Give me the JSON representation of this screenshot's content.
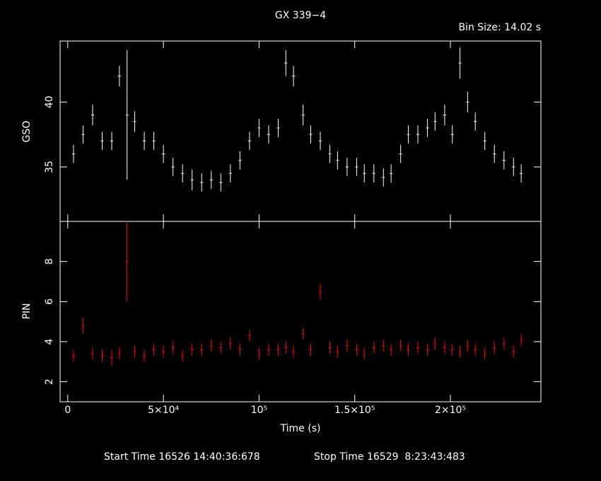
{
  "chart_data": [
    {
      "type": "errorbar",
      "title": "GX 339−4",
      "subtitle": "Bin Size: 14.02 s",
      "y_label": "GSO",
      "xlim": [
        -4000,
        247300
      ],
      "xticks": [
        0,
        50000,
        100000,
        150000,
        200000
      ],
      "ylim": [
        30.8,
        44.7
      ],
      "yticks": [
        35,
        40
      ],
      "series": [
        {
          "name": "GSO",
          "color": "#ffffff",
          "x": [
            3000,
            8000,
            13000,
            18000,
            23000,
            27000,
            31000,
            35000,
            40000,
            45000,
            50000,
            55000,
            60000,
            65000,
            70000,
            75000,
            80000,
            85000,
            90000,
            95000,
            100000,
            105000,
            110000,
            114000,
            118000,
            123000,
            127000,
            132000,
            137000,
            141000,
            146000,
            151000,
            155000,
            160000,
            165000,
            169000,
            174000,
            178000,
            183000,
            188000,
            192000,
            197000,
            201000,
            205000,
            209000,
            213000,
            218000,
            223000,
            228000,
            233000,
            237000
          ],
          "values": [
            36,
            37.5,
            39,
            37,
            37,
            42,
            39,
            38.5,
            37,
            37,
            36,
            35,
            34.5,
            34,
            33.8,
            34,
            33.8,
            34.5,
            35.5,
            37,
            38,
            37.5,
            38,
            43,
            42,
            39,
            37.5,
            37,
            36,
            35.5,
            35,
            35,
            34.5,
            34.5,
            34.2,
            34.5,
            36,
            37.5,
            37.5,
            38,
            38.5,
            39,
            37.5,
            43,
            40,
            38.5,
            37,
            36,
            35.5,
            35,
            34.5
          ],
          "errors": [
            0.7,
            0.7,
            0.8,
            0.7,
            0.7,
            0.8,
            5,
            0.8,
            0.7,
            0.7,
            0.7,
            0.7,
            0.7,
            0.8,
            0.7,
            0.7,
            0.7,
            0.7,
            0.7,
            0.7,
            0.7,
            0.7,
            0.7,
            1,
            0.8,
            0.8,
            0.7,
            0.7,
            0.7,
            0.7,
            0.7,
            0.7,
            0.7,
            0.7,
            0.7,
            0.7,
            0.7,
            0.7,
            0.7,
            0.7,
            0.7,
            0.8,
            0.7,
            1.2,
            0.8,
            0.7,
            0.7,
            0.7,
            0.7,
            0.7,
            0.7
          ]
        }
      ]
    },
    {
      "type": "errorbar",
      "x_label": "Time (s)",
      "y_label": "PIN",
      "xlim": [
        -4000,
        247300
      ],
      "xticks": [
        {
          "value": 0,
          "label": "0"
        },
        {
          "value": 50000,
          "label": "5×10⁴"
        },
        {
          "value": 100000,
          "label": "10⁵"
        },
        {
          "value": 150000,
          "label": "1.5×10⁵"
        },
        {
          "value": 200000,
          "label": "2×10⁵"
        }
      ],
      "ylim": [
        1,
        10
      ],
      "yticks": [
        2,
        4,
        6,
        8
      ],
      "series": [
        {
          "name": "PIN",
          "color": "#ff0000",
          "x": [
            3000,
            8000,
            13000,
            18000,
            23000,
            27000,
            31000,
            35000,
            40000,
            45000,
            50000,
            55000,
            60000,
            65000,
            70000,
            75000,
            80000,
            85000,
            90000,
            95000,
            100000,
            105000,
            110000,
            114000,
            118000,
            123000,
            127000,
            132000,
            137000,
            141000,
            146000,
            151000,
            155000,
            160000,
            165000,
            169000,
            174000,
            178000,
            183000,
            188000,
            192000,
            197000,
            201000,
            205000,
            209000,
            213000,
            218000,
            223000,
            228000,
            233000,
            237000
          ],
          "values": [
            3.3,
            4.8,
            3.4,
            3.3,
            3.2,
            3.4,
            8,
            3.5,
            3.3,
            3.6,
            3.5,
            3.7,
            3.3,
            3.6,
            3.6,
            3.8,
            3.7,
            3.9,
            3.6,
            4.3,
            3.4,
            3.6,
            3.6,
            3.7,
            3.5,
            4.4,
            3.6,
            6.5,
            3.7,
            3.5,
            3.8,
            3.6,
            3.4,
            3.7,
            3.8,
            3.6,
            3.8,
            3.6,
            3.7,
            3.6,
            3.9,
            3.7,
            3.6,
            3.5,
            3.8,
            3.6,
            3.4,
            3.7,
            3.9,
            3.5,
            4.1
          ],
          "errors": [
            0.3,
            0.4,
            0.3,
            0.3,
            0.4,
            0.3,
            2,
            0.3,
            0.3,
            0.3,
            0.3,
            0.3,
            0.3,
            0.3,
            0.3,
            0.3,
            0.3,
            0.3,
            0.3,
            0.3,
            0.3,
            0.3,
            0.3,
            0.3,
            0.3,
            0.3,
            0.3,
            0.4,
            0.3,
            0.3,
            0.3,
            0.3,
            0.3,
            0.3,
            0.3,
            0.3,
            0.3,
            0.3,
            0.3,
            0.3,
            0.3,
            0.3,
            0.3,
            0.3,
            0.3,
            0.3,
            0.3,
            0.3,
            0.3,
            0.3,
            0.3
          ]
        }
      ]
    }
  ],
  "footer": {
    "start": "Start Time 16526 14:40:36:678",
    "stop": "Stop Time 16529  8:23:43:483"
  }
}
